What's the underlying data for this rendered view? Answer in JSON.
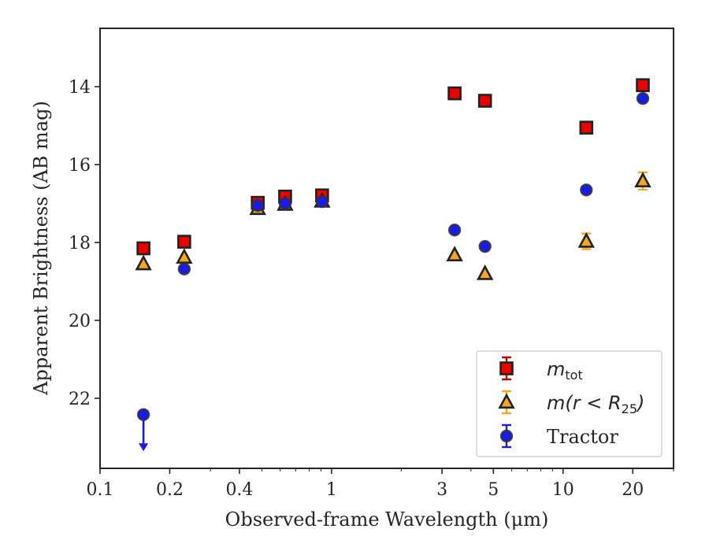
{
  "chart_data": {
    "type": "scatter",
    "title": "",
    "xlabel": "Observed-frame Wavelength (μm)",
    "ylabel": "Apparent Brightness (AB mag)",
    "xscale": "log",
    "xlim": [
      0.1,
      30
    ],
    "ylim": [
      23.8,
      12.5
    ],
    "y_inverted": true,
    "xticks": [
      {
        "value": 0.1,
        "label": "0.1"
      },
      {
        "value": 0.2,
        "label": "0.2"
      },
      {
        "value": 0.4,
        "label": "0.4"
      },
      {
        "value": 1,
        "label": "1"
      },
      {
        "value": 3,
        "label": "3"
      },
      {
        "value": 5,
        "label": "5"
      },
      {
        "value": 10,
        "label": "10"
      },
      {
        "value": 20,
        "label": "20"
      }
    ],
    "yticks": [
      {
        "value": 14,
        "label": "14"
      },
      {
        "value": 16,
        "label": "16"
      },
      {
        "value": 18,
        "label": "18"
      },
      {
        "value": 20,
        "label": "20"
      },
      {
        "value": 22,
        "label": "22"
      }
    ],
    "grid": false,
    "legend_position": "lower-right",
    "series": [
      {
        "name": "m_tot",
        "marker": "square",
        "color": "#ee0000",
        "errcolor": "#cc0000",
        "points": [
          {
            "x": 0.154,
            "y": 18.15
          },
          {
            "x": 0.231,
            "y": 17.98
          },
          {
            "x": 0.48,
            "y": 16.98
          },
          {
            "x": 0.63,
            "y": 16.82
          },
          {
            "x": 0.91,
            "y": 16.79
          },
          {
            "x": 3.4,
            "y": 14.17
          },
          {
            "x": 4.6,
            "y": 14.36
          },
          {
            "x": 12.6,
            "y": 15.05
          },
          {
            "x": 22.1,
            "y": 13.96
          }
        ]
      },
      {
        "name": "m(r < R25)",
        "marker": "triangle",
        "color": "#f5a623",
        "errcolor": "#f5a623",
        "points": [
          {
            "x": 0.154,
            "y": 18.55
          },
          {
            "x": 0.231,
            "y": 18.38
          },
          {
            "x": 0.48,
            "y": 17.13
          },
          {
            "x": 0.63,
            "y": 17.02
          },
          {
            "x": 0.91,
            "y": 16.94
          },
          {
            "x": 3.4,
            "y": 18.32
          },
          {
            "x": 4.6,
            "y": 18.8
          },
          {
            "x": 12.6,
            "y": 17.97,
            "err": 0.2
          },
          {
            "x": 22.1,
            "y": 16.42,
            "err": 0.22
          }
        ]
      },
      {
        "name": "Tractor",
        "marker": "circle",
        "color": "#1a1aee",
        "errcolor": "#1a1aee",
        "points": [
          {
            "x": 0.154,
            "y": 22.42,
            "upper_limit": true
          },
          {
            "x": 0.231,
            "y": 18.68
          },
          {
            "x": 0.48,
            "y": 17.05
          },
          {
            "x": 0.63,
            "y": 17.0
          },
          {
            "x": 0.91,
            "y": 16.95
          },
          {
            "x": 3.4,
            "y": 17.68
          },
          {
            "x": 4.6,
            "y": 18.1
          },
          {
            "x": 12.6,
            "y": 16.65
          },
          {
            "x": 22.1,
            "y": 14.3
          }
        ]
      }
    ],
    "legend": [
      {
        "label_main": "m",
        "label_sub": "tot",
        "series": 0
      },
      {
        "label_main": "m(r < R",
        "label_sub": "25",
        "label_end": ")",
        "series": 1
      },
      {
        "label_main": "Tractor",
        "series": 2
      }
    ]
  }
}
